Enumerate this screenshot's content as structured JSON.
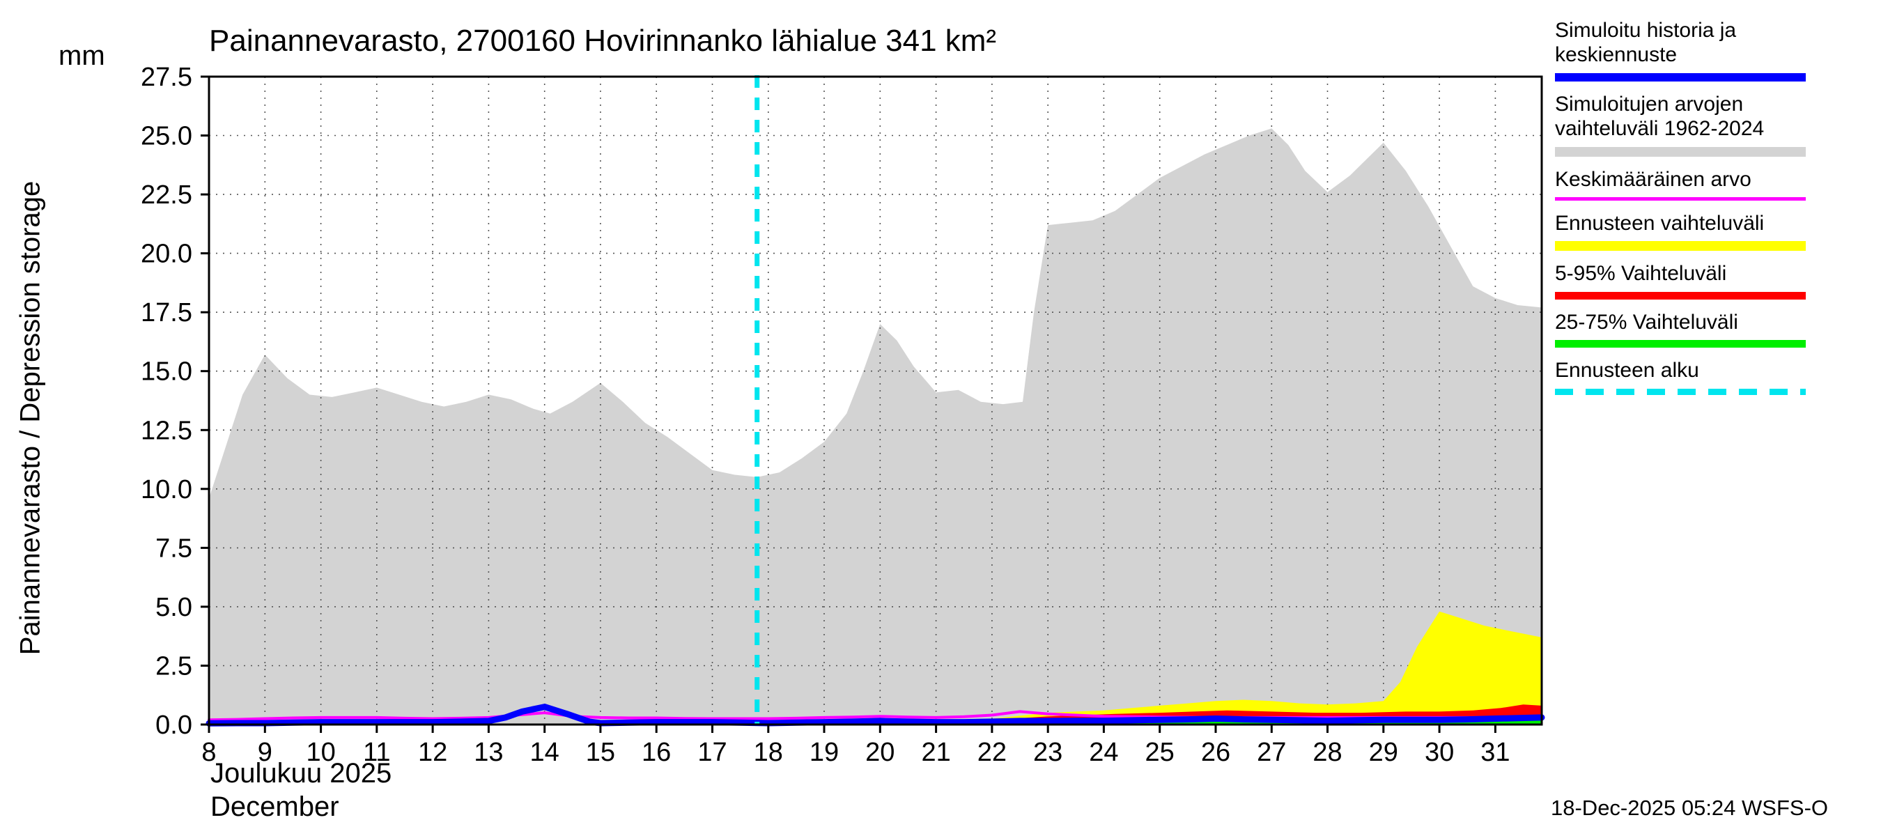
{
  "title": "Painannevarasto, 2700160 Hovirinnanko lähialue 341 km²",
  "axes": {
    "y_label": "Painannevarasto / Depression storage",
    "y_unit": "mm",
    "x_label_fi": "Joulukuu 2025",
    "x_label_en": "December"
  },
  "footer": {
    "timestamp": "18-Dec-2025 05:24 WSFS-O"
  },
  "legend": [
    {
      "label": "Simuloitu historia ja keskiennuste",
      "color": "#0000ff",
      "thickness": 12,
      "dash": false
    },
    {
      "label": "Simuloitujen arvojen vaihteluväli 1962-2024",
      "color": "#d3d3d3",
      "thickness": 14,
      "dash": false
    },
    {
      "label": "Keskimääräinen arvo",
      "color": "#ff00ff",
      "thickness": 5,
      "dash": false
    },
    {
      "label": "Ennusteen vaihteluväli",
      "color": "#ffff00",
      "thickness": 14,
      "dash": false
    },
    {
      "label": "5-95% Vaihteluväli",
      "color": "#ff0000",
      "thickness": 11,
      "dash": false
    },
    {
      "label": "25-75% Vaihteluväli",
      "color": "#00ee00",
      "thickness": 11,
      "dash": false
    },
    {
      "label": "Ennusteen alku",
      "color": "#00e5ee",
      "thickness": 9,
      "dash": true
    }
  ],
  "chart_data": {
    "type": "area",
    "title": "Painannevarasto, 2700160 Hovirinnanko lähialue 341 km²",
    "xlabel": "Joulukuu 2025 / December",
    "ylabel": "Painannevarasto / Depression storage (mm)",
    "xlim": [
      8,
      31.83
    ],
    "ylim": [
      0,
      27.5
    ],
    "yticks": [
      0.0,
      2.5,
      5.0,
      7.5,
      10.0,
      12.5,
      15.0,
      17.5,
      20.0,
      22.5,
      25.0,
      27.5
    ],
    "xticks": [
      8,
      9,
      10,
      11,
      12,
      13,
      14,
      15,
      16,
      17,
      18,
      19,
      20,
      21,
      22,
      23,
      24,
      25,
      26,
      27,
      28,
      29,
      30,
      31
    ],
    "grid": true,
    "forecast_start_x": 17.8,
    "forecast_line_color": "#00e5ee",
    "series": [
      {
        "id": "history_range",
        "name": "Simuloitujen arvojen vaihteluväli 1962-2024",
        "kind": "area",
        "color": "#d3d3d3",
        "x": [
          8,
          8.3,
          8.6,
          9,
          9.4,
          9.8,
          10.2,
          10.6,
          11,
          11.4,
          11.8,
          12.2,
          12.6,
          13,
          13.4,
          13.8,
          14.1,
          14.5,
          15,
          15.4,
          15.8,
          16.2,
          16.6,
          17,
          17.4,
          17.8,
          18.2,
          18.6,
          19,
          19.4,
          19.7,
          20,
          20.3,
          20.6,
          21,
          21.4,
          21.8,
          22.2,
          22.55,
          22.75,
          23,
          23.4,
          23.8,
          24.2,
          24.6,
          25,
          25.4,
          25.8,
          26.2,
          26.6,
          27,
          27.3,
          27.6,
          28,
          28.4,
          28.7,
          29,
          29.4,
          29.8,
          30.2,
          30.6,
          31,
          31.4,
          31.83
        ],
        "y": [
          9.6,
          11.8,
          14.0,
          15.7,
          14.7,
          14.0,
          13.9,
          14.1,
          14.3,
          14.0,
          13.7,
          13.5,
          13.7,
          14.0,
          13.8,
          13.4,
          13.2,
          13.7,
          14.5,
          13.7,
          12.8,
          12.2,
          11.5,
          10.8,
          10.6,
          10.5,
          10.7,
          11.3,
          12.0,
          13.2,
          15.0,
          17.0,
          16.3,
          15.2,
          14.1,
          14.2,
          13.7,
          13.6,
          13.7,
          17.5,
          21.2,
          21.3,
          21.4,
          21.8,
          22.5,
          23.2,
          23.7,
          24.2,
          24.6,
          25.0,
          25.3,
          24.6,
          23.5,
          22.6,
          23.3,
          24.0,
          24.7,
          23.5,
          22.0,
          20.3,
          18.6,
          18.1,
          17.8,
          17.7
        ]
      },
      {
        "id": "forecast_range",
        "name": "Ennusteen vaihteluväli",
        "kind": "area",
        "color": "#ffff00",
        "x": [
          21.8,
          22.2,
          22.6,
          23,
          23.5,
          24,
          24.5,
          25,
          25.5,
          26,
          26.5,
          27,
          27.5,
          28,
          28.5,
          29,
          29.3,
          29.6,
          30,
          30.4,
          30.8,
          31.2,
          31.83
        ],
        "y": [
          0.2,
          0.3,
          0.4,
          0.5,
          0.55,
          0.6,
          0.7,
          0.8,
          0.9,
          1.0,
          1.05,
          1.0,
          0.9,
          0.85,
          0.9,
          1.0,
          1.8,
          3.3,
          4.8,
          4.5,
          4.2,
          4.0,
          3.7
        ]
      },
      {
        "id": "range_5_95",
        "name": "5-95% Vaihteluväli",
        "kind": "area",
        "color": "#ff0000",
        "x": [
          21.8,
          22.4,
          23,
          23.6,
          24.2,
          25,
          25.6,
          26.2,
          27,
          27.8,
          28.6,
          29.4,
          30,
          30.6,
          31.1,
          31.5,
          31.83
        ],
        "y": [
          0.15,
          0.25,
          0.35,
          0.4,
          0.45,
          0.5,
          0.55,
          0.6,
          0.55,
          0.5,
          0.5,
          0.55,
          0.55,
          0.6,
          0.7,
          0.85,
          0.8
        ]
      },
      {
        "id": "range_25_75",
        "name": "25-75% Vaihteluväli",
        "kind": "area",
        "color": "#00ee00",
        "x": [
          21.8,
          23,
          24,
          25,
          26,
          27,
          28,
          29,
          30,
          31,
          31.83
        ],
        "y": [
          0.1,
          0.15,
          0.2,
          0.22,
          0.25,
          0.22,
          0.2,
          0.22,
          0.25,
          0.3,
          0.3
        ]
      },
      {
        "id": "mean",
        "name": "Keskimääräinen arvo",
        "kind": "line",
        "color": "#ff00ff",
        "width": 4,
        "x": [
          8,
          8.5,
          9,
          9.5,
          10,
          10.5,
          11,
          11.5,
          12,
          12.5,
          13,
          13.5,
          14,
          14.5,
          15,
          15.5,
          16,
          16.5,
          17,
          17.5,
          18,
          18.5,
          19,
          19.5,
          20,
          20.5,
          21,
          21.5,
          22,
          22.5,
          23,
          23.5,
          24,
          25,
          26,
          27,
          28,
          29,
          30,
          31,
          31.83
        ],
        "y": [
          0.2,
          0.22,
          0.25,
          0.28,
          0.3,
          0.3,
          0.3,
          0.27,
          0.25,
          0.27,
          0.3,
          0.4,
          0.5,
          0.35,
          0.3,
          0.28,
          0.28,
          0.26,
          0.25,
          0.25,
          0.25,
          0.27,
          0.3,
          0.32,
          0.35,
          0.32,
          0.3,
          0.33,
          0.4,
          0.55,
          0.45,
          0.4,
          0.35,
          0.32,
          0.3,
          0.3,
          0.3,
          0.3,
          0.3,
          0.3,
          0.3
        ]
      },
      {
        "id": "simulated",
        "name": "Simuloitu historia ja keskiennuste",
        "kind": "line",
        "color": "#0000ff",
        "width": 9,
        "x": [
          8,
          8.5,
          9,
          9.5,
          10,
          10.5,
          11,
          11.5,
          12,
          12.5,
          13,
          13.3,
          13.6,
          14,
          14.4,
          14.8,
          15,
          15.5,
          16,
          16.5,
          17,
          17.5,
          18,
          18.5,
          19,
          19.5,
          20,
          20.5,
          21,
          21.5,
          22,
          22.5,
          23,
          23.5,
          24,
          24.5,
          25,
          25.5,
          26,
          26.5,
          27,
          27.5,
          28,
          28.5,
          29,
          29.5,
          30,
          30.5,
          31,
          31.83
        ],
        "y": [
          0.05,
          0.06,
          0.06,
          0.08,
          0.1,
          0.1,
          0.1,
          0.1,
          0.1,
          0.12,
          0.15,
          0.3,
          0.55,
          0.75,
          0.45,
          0.12,
          0.06,
          0.08,
          0.1,
          0.1,
          0.1,
          0.08,
          0.06,
          0.08,
          0.1,
          0.12,
          0.15,
          0.12,
          0.1,
          0.1,
          0.12,
          0.15,
          0.15,
          0.16,
          0.16,
          0.18,
          0.2,
          0.22,
          0.25,
          0.22,
          0.2,
          0.18,
          0.16,
          0.18,
          0.2,
          0.2,
          0.2,
          0.22,
          0.25,
          0.3
        ]
      }
    ]
  }
}
